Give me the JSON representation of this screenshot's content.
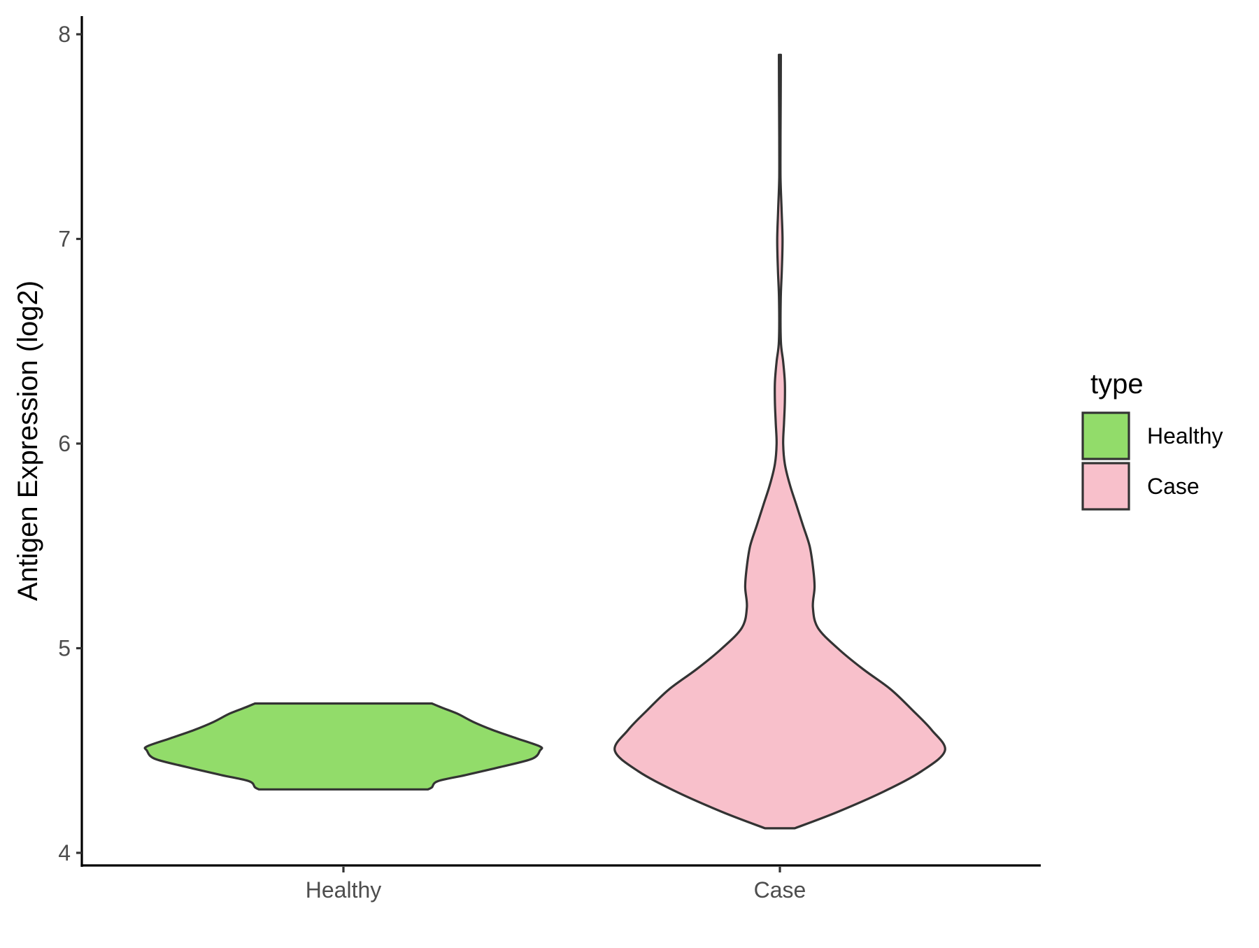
{
  "chart_data": {
    "type": "violin",
    "title": "",
    "xlabel": "",
    "ylabel": "Antigen Expression (log2)",
    "ylim": [
      3.93,
      8.1
    ],
    "yticks": [
      4,
      5,
      6,
      7,
      8
    ],
    "categories": [
      "Healthy",
      "Case"
    ],
    "grid": false,
    "legend": {
      "title": "type",
      "position": "right",
      "entries": [
        {
          "label": "Healthy",
          "color": "#92dc6a"
        },
        {
          "label": "Case",
          "color": "#f8c0cb"
        }
      ]
    },
    "series": [
      {
        "name": "Healthy",
        "color": "#92dc6a",
        "min": 4.31,
        "max": 4.73,
        "profile": [
          [
            4.31,
            0.43
          ],
          [
            4.32,
            0.45
          ],
          [
            4.35,
            0.48
          ],
          [
            4.38,
            0.62
          ],
          [
            4.42,
            0.8
          ],
          [
            4.46,
            0.96
          ],
          [
            4.5,
            1.0
          ],
          [
            4.52,
            1.0
          ],
          [
            4.56,
            0.88
          ],
          [
            4.6,
            0.76
          ],
          [
            4.64,
            0.66
          ],
          [
            4.68,
            0.58
          ],
          [
            4.71,
            0.5
          ],
          [
            4.73,
            0.45
          ]
        ]
      },
      {
        "name": "Case",
        "color": "#f8c0cb",
        "min": 4.12,
        "max": 7.9,
        "profile": [
          [
            4.12,
            0.09
          ],
          [
            4.2,
            0.35
          ],
          [
            4.3,
            0.63
          ],
          [
            4.4,
            0.86
          ],
          [
            4.5,
            1.0
          ],
          [
            4.6,
            0.92
          ],
          [
            4.7,
            0.8
          ],
          [
            4.8,
            0.67
          ],
          [
            4.9,
            0.5
          ],
          [
            5.0,
            0.35
          ],
          [
            5.1,
            0.23
          ],
          [
            5.2,
            0.2
          ],
          [
            5.3,
            0.21
          ],
          [
            5.4,
            0.2
          ],
          [
            5.5,
            0.18
          ],
          [
            5.6,
            0.14
          ],
          [
            5.7,
            0.1
          ],
          [
            5.8,
            0.06
          ],
          [
            5.9,
            0.03
          ],
          [
            6.0,
            0.02
          ],
          [
            6.1,
            0.025
          ],
          [
            6.2,
            0.03
          ],
          [
            6.3,
            0.03
          ],
          [
            6.4,
            0.02
          ],
          [
            6.5,
            0.006
          ],
          [
            6.7,
            0.005
          ],
          [
            6.85,
            0.012
          ],
          [
            7.0,
            0.016
          ],
          [
            7.15,
            0.01
          ],
          [
            7.3,
            0.004
          ],
          [
            7.5,
            0.004
          ],
          [
            7.7,
            0.005
          ],
          [
            7.9,
            0.006
          ]
        ]
      }
    ]
  }
}
